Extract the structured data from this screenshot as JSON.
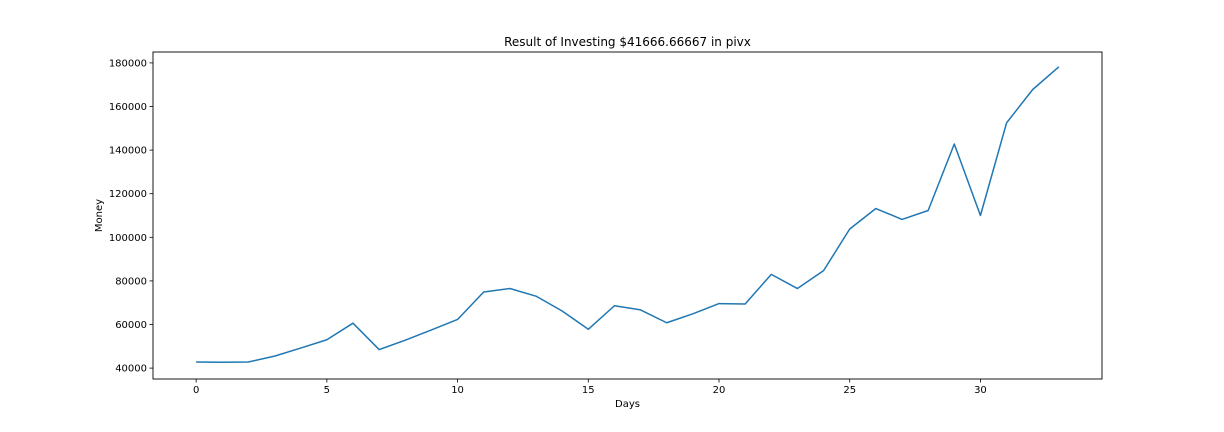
{
  "chart_data": {
    "type": "line",
    "title": "Result of Investing $41666.66667 in pivx",
    "xlabel": "Days",
    "ylabel": "Money",
    "xlim": [
      -1.65,
      34.65
    ],
    "ylim": [
      35000,
      185000
    ],
    "xticks": [
      0,
      5,
      10,
      15,
      20,
      25,
      30
    ],
    "yticks": [
      40000,
      60000,
      80000,
      100000,
      120000,
      140000,
      160000,
      180000
    ],
    "grid": false,
    "series": [
      {
        "color": "#1f77b4",
        "x": [
          0,
          1,
          2,
          3,
          4,
          5,
          6,
          7,
          8,
          9,
          10,
          11,
          12,
          13,
          14,
          15,
          16,
          17,
          18,
          19,
          20,
          21,
          22,
          23,
          24,
          25,
          26,
          27,
          28,
          29,
          30,
          31,
          32,
          33
        ],
        "y": [
          42800,
          42700,
          42800,
          45500,
          49200,
          53000,
          60600,
          48500,
          52800,
          57500,
          62300,
          74900,
          76500,
          73000,
          66200,
          57800,
          68600,
          66700,
          60800,
          64900,
          69600,
          69400,
          83000,
          76500,
          84700,
          103800,
          113200,
          108200,
          112300,
          142800,
          110000,
          152500,
          167800,
          178200
        ]
      }
    ]
  }
}
